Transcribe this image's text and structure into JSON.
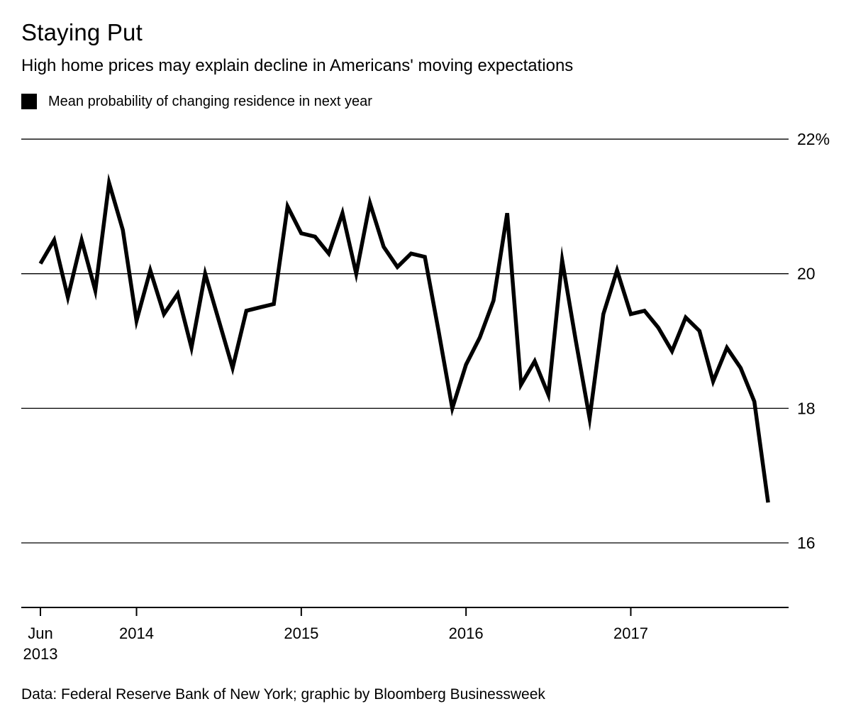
{
  "header": {
    "title": "Staying Put",
    "subtitle": "High home prices may explain decline in Americans' moving expectations"
  },
  "legend": {
    "label": "Mean probability of changing residence in next year",
    "swatch_color": "#000000"
  },
  "footer": {
    "source": "Data: Federal Reserve Bank of New York; graphic by Bloomberg Businessweek"
  },
  "chart_data": {
    "type": "line",
    "title": "Staying Put",
    "subtitle": "High home prices may explain decline in Americans' moving expectations",
    "series_name": "Mean probability of changing residence in next year",
    "legend_position": "top-left",
    "line_color": "#000000",
    "background_color": "#ffffff",
    "grid": true,
    "unit": "%",
    "xlabel": "",
    "ylabel": "",
    "ylim": [
      15.0,
      22.4
    ],
    "yticks": [
      {
        "value": 22,
        "label": "22%"
      },
      {
        "value": 20,
        "label": "20"
      },
      {
        "value": 18,
        "label": "18"
      },
      {
        "value": 16,
        "label": "16"
      }
    ],
    "xticks": [
      {
        "month": "2013-06",
        "label": "Jun",
        "sublabel": "2013"
      },
      {
        "month": "2014-01",
        "label": "2014",
        "sublabel": ""
      },
      {
        "month": "2015-01",
        "label": "2015",
        "sublabel": ""
      },
      {
        "month": "2016-01",
        "label": "2016",
        "sublabel": ""
      },
      {
        "month": "2017-01",
        "label": "2017",
        "sublabel": ""
      }
    ],
    "x": [
      "2013-06",
      "2013-07",
      "2013-08",
      "2013-09",
      "2013-10",
      "2013-11",
      "2013-12",
      "2014-01",
      "2014-02",
      "2014-03",
      "2014-04",
      "2014-05",
      "2014-06",
      "2014-07",
      "2014-08",
      "2014-09",
      "2014-10",
      "2014-11",
      "2014-12",
      "2015-01",
      "2015-02",
      "2015-03",
      "2015-04",
      "2015-05",
      "2015-06",
      "2015-07",
      "2015-08",
      "2015-09",
      "2015-10",
      "2015-11",
      "2015-12",
      "2016-01",
      "2016-02",
      "2016-03",
      "2016-04",
      "2016-05",
      "2016-06",
      "2016-07",
      "2016-08",
      "2016-09",
      "2016-10",
      "2016-11",
      "2016-12",
      "2017-01",
      "2017-02",
      "2017-03",
      "2017-04",
      "2017-05",
      "2017-06",
      "2017-07",
      "2017-08",
      "2017-09",
      "2017-10",
      "2017-11"
    ],
    "values": [
      20.15,
      20.5,
      19.65,
      20.5,
      19.75,
      21.35,
      20.65,
      19.3,
      20.05,
      19.4,
      19.7,
      18.9,
      20.0,
      19.3,
      18.6,
      19.45,
      19.5,
      19.55,
      21.0,
      20.6,
      20.55,
      20.3,
      20.9,
      20.0,
      21.05,
      20.4,
      20.1,
      20.3,
      20.25,
      19.15,
      18.0,
      18.65,
      19.05,
      19.6,
      20.9,
      18.35,
      18.7,
      18.2,
      20.2,
      19.0,
      17.85,
      19.4,
      20.05,
      19.4,
      19.45,
      19.2,
      18.85,
      19.35,
      19.15,
      18.4,
      18.9,
      18.6,
      18.1,
      16.6
    ]
  }
}
